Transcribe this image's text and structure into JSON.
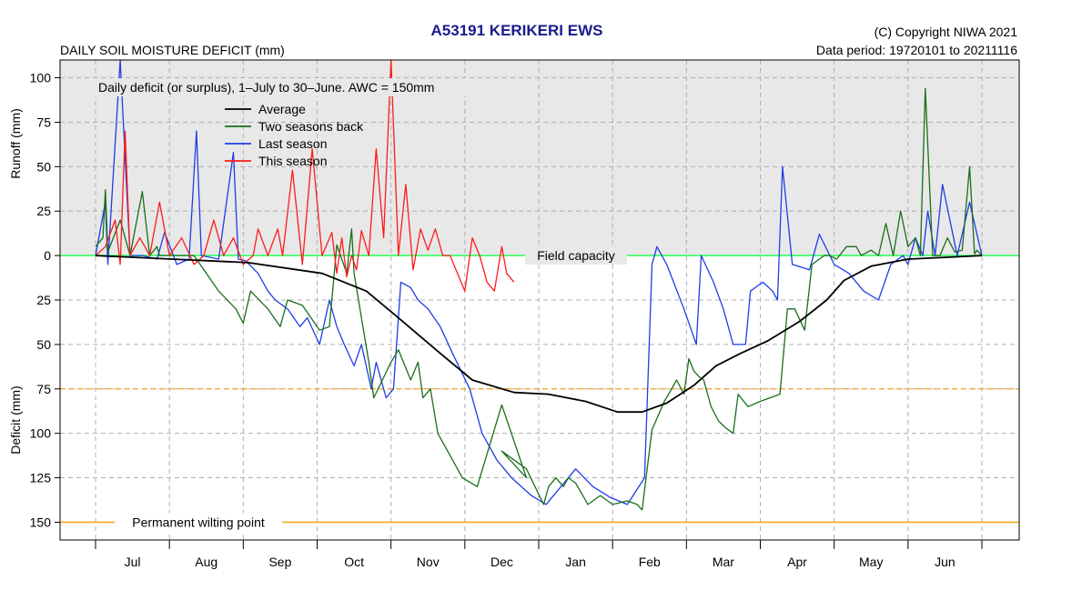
{
  "chart_data": {
    "type": "line",
    "title": "A53191  KERIKERI EWS",
    "subtitle": "DAILY SOIL MOISTURE DEFICIT (mm)",
    "copyright": "(C) Copyright NIWA  2021",
    "data_period": "Data period:  19720101  to  20211116",
    "description": "Daily deficit (or surplus), 1–July to 30–June.  AWC = 150mm",
    "ylabel_top": "Runoff (mm)",
    "ylabel_bottom": "Deficit (mm)",
    "x_unit": "day of season (0 = 1 July)",
    "ylim": [
      -110,
      160
    ],
    "y_ticks": [
      {
        "value": -100,
        "label": "100"
      },
      {
        "value": -75,
        "label": "75"
      },
      {
        "value": -50,
        "label": "50"
      },
      {
        "value": -25,
        "label": "25"
      },
      {
        "value": 0,
        "label": "0"
      },
      {
        "value": 25,
        "label": "25"
      },
      {
        "value": 50,
        "label": "50"
      },
      {
        "value": 75,
        "label": "75"
      },
      {
        "value": 100,
        "label": "100"
      },
      {
        "value": 125,
        "label": "125"
      },
      {
        "value": 150,
        "label": "150"
      }
    ],
    "months": [
      "Jul",
      "Aug",
      "Sep",
      "Oct",
      "Nov",
      "Dec",
      "Jan",
      "Feb",
      "Mar",
      "Apr",
      "May",
      "Jun"
    ],
    "grid": true,
    "legend_position": "top-left",
    "reference_lines": [
      {
        "label": "Field capacity",
        "value": 0,
        "color": "#33ff66"
      },
      {
        "label": "",
        "value": 75,
        "color": "#f5a623"
      },
      {
        "label": "Permanent wilting point",
        "value": 150,
        "color": "#f5a623"
      }
    ],
    "series": [
      {
        "name": "Average",
        "color": "#000000",
        "x": [
          0,
          31,
          62,
          92,
          110,
          123,
          140,
          153,
          170,
          184,
          199,
          212,
          222,
          232,
          243,
          252,
          262,
          273,
          286,
          297,
          304,
          315,
          330,
          345,
          360
        ],
        "y": [
          0,
          2,
          4,
          10,
          20,
          35,
          55,
          70,
          77,
          78,
          82,
          88,
          88,
          83,
          73,
          62,
          55,
          48,
          37,
          25,
          14,
          6,
          2,
          1,
          0
        ]
      },
      {
        "name": "Two seasons back",
        "color": "#1a6e1a",
        "x": [
          0,
          3,
          4,
          5,
          10,
          14,
          19,
          22,
          25,
          26,
          30,
          40,
          50,
          57,
          60,
          63,
          70,
          75,
          78,
          84,
          91,
          95,
          98,
          102,
          104,
          105,
          111,
          113,
          120,
          123,
          128,
          131,
          133,
          136,
          139,
          143,
          147,
          149,
          155,
          165,
          175,
          165,
          175,
          182,
          184,
          187,
          190,
          192,
          195,
          200,
          205,
          210,
          216,
          220,
          222,
          226,
          231,
          234,
          236,
          239,
          241,
          243,
          245,
          247,
          250,
          253,
          256,
          259,
          261,
          265,
          270,
          278,
          281,
          284,
          288,
          291,
          296,
          298,
          301,
          305,
          309,
          311,
          315,
          318,
          321,
          324,
          327,
          330,
          333,
          335,
          337,
          340,
          343,
          346,
          349,
          352,
          355,
          357,
          358,
          360
        ],
        "y": [
          -5,
          -10,
          -37,
          -2,
          -20,
          0,
          -36,
          0,
          -5,
          0,
          0,
          0,
          20,
          30,
          38,
          20,
          30,
          40,
          25,
          28,
          42,
          40,
          -6,
          10,
          -15,
          10,
          60,
          80,
          60,
          53,
          70,
          60,
          80,
          75,
          100,
          110,
          120,
          125,
          130,
          84,
          125,
          110,
          120,
          140,
          130,
          125,
          130,
          125,
          128,
          140,
          135,
          140,
          138,
          140,
          143,
          98,
          82,
          75,
          70,
          78,
          58,
          65,
          68,
          70,
          85,
          93,
          97,
          100,
          78,
          85,
          82,
          78,
          30,
          30,
          42,
          5,
          0,
          0,
          2,
          -5,
          -5,
          0,
          -3,
          0,
          -18,
          0,
          -25,
          -5,
          -10,
          0,
          -94,
          0,
          0,
          -10,
          -2,
          -3,
          -50,
          -1,
          -3,
          0
        ]
      },
      {
        "name": "Last season",
        "color": "#1f3de6",
        "x": [
          0,
          4,
          5,
          10,
          14,
          19,
          25,
          28,
          33,
          38,
          41,
          43,
          50,
          56,
          58,
          61,
          66,
          70,
          73,
          78,
          83,
          86,
          91,
          95,
          98,
          101,
          105,
          108,
          112,
          114,
          118,
          121,
          124,
          128,
          131,
          135,
          140,
          145,
          152,
          157,
          163,
          169,
          177,
          183,
          189,
          195,
          202,
          209,
          216,
          223,
          226,
          228,
          232,
          239,
          244,
          246,
          251,
          255,
          259,
          264,
          266,
          271,
          275,
          277,
          279,
          283,
          290,
          294,
          300,
          306,
          312,
          318,
          323,
          328,
          330,
          333,
          336,
          338,
          341,
          344,
          350,
          355,
          360
        ],
        "y": [
          0,
          -30,
          5,
          -110,
          0,
          0,
          2,
          -13,
          5,
          2,
          -70,
          0,
          2,
          -58,
          2,
          3,
          10,
          20,
          25,
          30,
          40,
          35,
          50,
          25,
          40,
          50,
          62,
          50,
          75,
          60,
          80,
          75,
          15,
          18,
          25,
          30,
          40,
          55,
          75,
          100,
          115,
          125,
          135,
          140,
          130,
          120,
          130,
          136,
          140,
          125,
          5,
          -5,
          5,
          30,
          50,
          0,
          15,
          30,
          50,
          50,
          20,
          15,
          20,
          25,
          -50,
          5,
          8,
          -12,
          5,
          10,
          20,
          25,
          5,
          0,
          5,
          -10,
          0,
          -25,
          0,
          -40,
          0,
          -30,
          0
        ]
      },
      {
        "name": "This season",
        "color": "#ff1a1a",
        "x": [
          0,
          4,
          8,
          10,
          12,
          14,
          18,
          22,
          26,
          30,
          35,
          40,
          44,
          48,
          52,
          56,
          60,
          64,
          66,
          70,
          74,
          76,
          80,
          84,
          88,
          92,
          96,
          98,
          100,
          102,
          104,
          106,
          108,
          111,
          114,
          117,
          120,
          123,
          126,
          129,
          132,
          135,
          138,
          141,
          144,
          147,
          150,
          153,
          156,
          159,
          162,
          165,
          167,
          170
        ],
        "y": [
          0,
          -5,
          -20,
          5,
          -70,
          0,
          -10,
          0,
          -30,
          0,
          -10,
          5,
          0,
          -20,
          0,
          -10,
          5,
          0,
          -15,
          0,
          -15,
          0,
          -48,
          5,
          -60,
          0,
          -13,
          10,
          -10,
          12,
          0,
          8,
          -14,
          0,
          -60,
          -10,
          -110,
          0,
          -40,
          8,
          -15,
          -3,
          -15,
          0,
          0,
          10,
          20,
          -10,
          0,
          15,
          20,
          -5,
          10,
          15
        ]
      }
    ]
  }
}
